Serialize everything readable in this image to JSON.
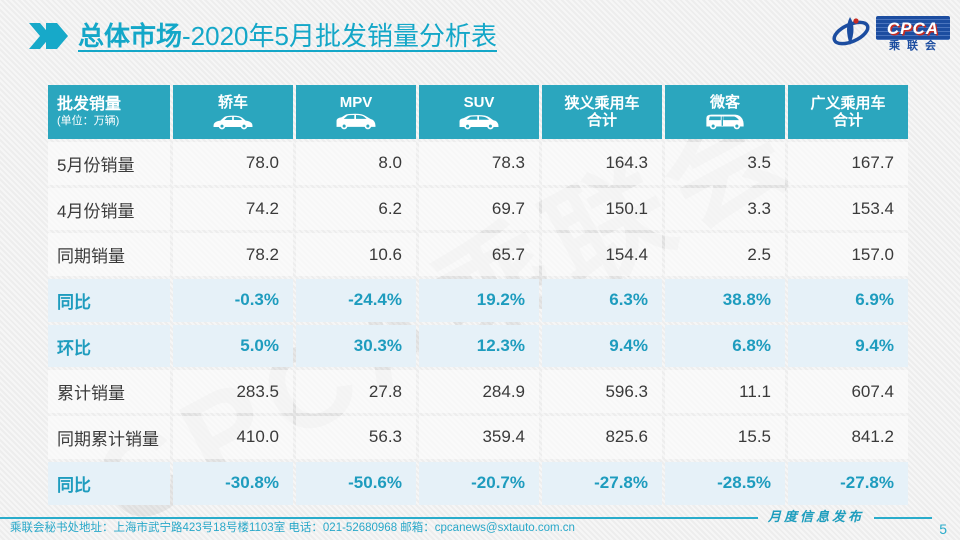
{
  "title": {
    "icon": "double-chevron-icon",
    "bold_part": "总体市场",
    "normal_part": "-2020年5月批发销量分析表"
  },
  "logo": {
    "swoosh_icon": "cpca-swoosh-icon",
    "abbr": "CPCA",
    "cn_name": "乘联会"
  },
  "watermark": "CPCA乘联会",
  "table": {
    "corner": {
      "label": "批发销量",
      "unit": "(单位：万辆)"
    },
    "columns": [
      {
        "label": "轿车",
        "label2": "",
        "icon": "sedan-icon"
      },
      {
        "label": "MPV",
        "label2": "",
        "icon": "mpv-icon"
      },
      {
        "label": "SUV",
        "label2": "",
        "icon": "suv-icon"
      },
      {
        "label": "狭义乘用车",
        "label2": "合计",
        "icon": ""
      },
      {
        "label": "微客",
        "label2": "",
        "icon": "minivan-icon"
      },
      {
        "label": "广义乘用车",
        "label2": "合计",
        "icon": ""
      }
    ],
    "rows": [
      {
        "label": "5月份销量",
        "type": "data",
        "values": [
          "78.0",
          "8.0",
          "78.3",
          "164.3",
          "3.5",
          "167.7"
        ]
      },
      {
        "label": "4月份销量",
        "type": "data",
        "values": [
          "74.2",
          "6.2",
          "69.7",
          "150.1",
          "3.3",
          "153.4"
        ]
      },
      {
        "label": "同期销量",
        "type": "data",
        "values": [
          "78.2",
          "10.6",
          "65.7",
          "154.4",
          "2.5",
          "157.0"
        ]
      },
      {
        "label": "同比",
        "type": "percent",
        "values": [
          "-0.3%",
          "-24.4%",
          "19.2%",
          "6.3%",
          "38.8%",
          "6.9%"
        ]
      },
      {
        "label": "环比",
        "type": "percent",
        "values": [
          "5.0%",
          "30.3%",
          "12.3%",
          "9.4%",
          "6.8%",
          "9.4%"
        ]
      },
      {
        "label": "累计销量",
        "type": "data",
        "values": [
          "283.5",
          "27.8",
          "284.9",
          "596.3",
          "11.1",
          "607.4"
        ]
      },
      {
        "label": "同期累计销量",
        "type": "data",
        "values": [
          "410.0",
          "56.3",
          "359.4",
          "825.6",
          "15.5",
          "841.2"
        ]
      },
      {
        "label": "同比",
        "type": "percent",
        "values": [
          "-30.8%",
          "-50.6%",
          "-20.7%",
          "-27.8%",
          "-28.5%",
          "-27.8%"
        ]
      }
    ]
  },
  "footer": {
    "address": "乘联会秘书处地址：上海市武宁路423号18号楼1103室  电话：021-52680968  邮箱：cpcanews@sxtauto.com.cn",
    "release_label": "月度信息发布",
    "page_number": "5"
  },
  "colors": {
    "accent_teal": "#14a7c8",
    "header_bg": "#2ba6be",
    "percent_row_bg": "#e6f1f8",
    "percent_text": "#1e9cbe",
    "logo_blue": "#1c4da0",
    "logo_red": "#c62b22"
  }
}
